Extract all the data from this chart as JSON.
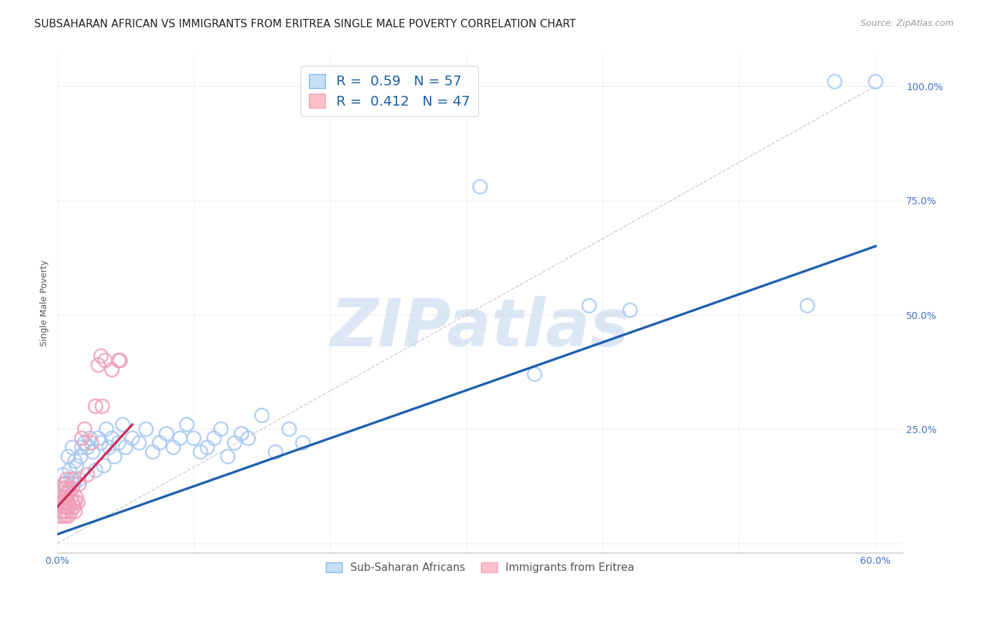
{
  "title": "SUBSAHARAN AFRICAN VS IMMIGRANTS FROM ERITREA SINGLE MALE POVERTY CORRELATION CHART",
  "source": "Source: ZipAtlas.com",
  "xlabel": "",
  "ylabel": "Single Male Poverty",
  "xlim": [
    0.0,
    0.62
  ],
  "ylim": [
    -0.02,
    1.07
  ],
  "xticks": [
    0.0,
    0.1,
    0.2,
    0.3,
    0.4,
    0.5,
    0.6
  ],
  "yticks": [
    0.0,
    0.25,
    0.5,
    0.75,
    1.0
  ],
  "yticklabels": [
    "",
    "25.0%",
    "50.0%",
    "75.0%",
    "100.0%"
  ],
  "blue_R": 0.59,
  "blue_N": 57,
  "pink_R": 0.412,
  "pink_N": 47,
  "blue_color": "#a8c8f0",
  "pink_color": "#f0a0b8",
  "blue_line_color": "#2060b0",
  "pink_line_color": "#cc3060",
  "blue_line": [
    [
      0.0,
      0.02
    ],
    [
      0.6,
      0.65
    ]
  ],
  "pink_line": [
    [
      0.0,
      0.08
    ],
    [
      0.055,
      0.26
    ]
  ],
  "diag_line": [
    [
      0.0,
      0.0
    ],
    [
      0.6,
      1.0
    ]
  ],
  "blue_scatter": [
    [
      0.004,
      0.15
    ],
    [
      0.006,
      0.13
    ],
    [
      0.007,
      0.11
    ],
    [
      0.008,
      0.19
    ],
    [
      0.009,
      0.16
    ],
    [
      0.01,
      0.14
    ],
    [
      0.011,
      0.21
    ],
    [
      0.012,
      0.13
    ],
    [
      0.013,
      0.18
    ],
    [
      0.014,
      0.17
    ],
    [
      0.016,
      0.14
    ],
    [
      0.017,
      0.19
    ],
    [
      0.018,
      0.21
    ],
    [
      0.02,
      0.22
    ],
    [
      0.022,
      0.21
    ],
    [
      0.024,
      0.23
    ],
    [
      0.026,
      0.2
    ],
    [
      0.028,
      0.16
    ],
    [
      0.03,
      0.23
    ],
    [
      0.032,
      0.22
    ],
    [
      0.034,
      0.17
    ],
    [
      0.036,
      0.25
    ],
    [
      0.038,
      0.21
    ],
    [
      0.04,
      0.23
    ],
    [
      0.042,
      0.19
    ],
    [
      0.045,
      0.22
    ],
    [
      0.048,
      0.26
    ],
    [
      0.05,
      0.21
    ],
    [
      0.055,
      0.23
    ],
    [
      0.06,
      0.22
    ],
    [
      0.065,
      0.25
    ],
    [
      0.07,
      0.2
    ],
    [
      0.075,
      0.22
    ],
    [
      0.08,
      0.24
    ],
    [
      0.085,
      0.21
    ],
    [
      0.09,
      0.23
    ],
    [
      0.095,
      0.26
    ],
    [
      0.1,
      0.23
    ],
    [
      0.105,
      0.2
    ],
    [
      0.11,
      0.21
    ],
    [
      0.115,
      0.23
    ],
    [
      0.12,
      0.25
    ],
    [
      0.125,
      0.19
    ],
    [
      0.13,
      0.22
    ],
    [
      0.135,
      0.24
    ],
    [
      0.14,
      0.23
    ],
    [
      0.15,
      0.28
    ],
    [
      0.16,
      0.2
    ],
    [
      0.17,
      0.25
    ],
    [
      0.18,
      0.22
    ],
    [
      0.31,
      0.78
    ],
    [
      0.35,
      0.37
    ],
    [
      0.39,
      0.52
    ],
    [
      0.42,
      0.51
    ],
    [
      0.55,
      0.52
    ],
    [
      0.57,
      1.01
    ],
    [
      0.6,
      1.01
    ]
  ],
  "pink_scatter": [
    [
      0.002,
      0.06
    ],
    [
      0.002,
      0.08
    ],
    [
      0.003,
      0.1
    ],
    [
      0.003,
      0.12
    ],
    [
      0.003,
      0.07
    ],
    [
      0.004,
      0.09
    ],
    [
      0.004,
      0.11
    ],
    [
      0.004,
      0.06
    ],
    [
      0.005,
      0.1
    ],
    [
      0.005,
      0.08
    ],
    [
      0.005,
      0.13
    ],
    [
      0.005,
      0.07
    ],
    [
      0.006,
      0.12
    ],
    [
      0.006,
      0.09
    ],
    [
      0.006,
      0.06
    ],
    [
      0.007,
      0.1
    ],
    [
      0.007,
      0.08
    ],
    [
      0.007,
      0.14
    ],
    [
      0.007,
      0.07
    ],
    [
      0.008,
      0.11
    ],
    [
      0.008,
      0.09
    ],
    [
      0.008,
      0.06
    ],
    [
      0.009,
      0.12
    ],
    [
      0.009,
      0.08
    ],
    [
      0.01,
      0.1
    ],
    [
      0.01,
      0.07
    ],
    [
      0.011,
      0.09
    ],
    [
      0.011,
      0.12
    ],
    [
      0.012,
      0.08
    ],
    [
      0.012,
      0.14
    ],
    [
      0.013,
      0.09
    ],
    [
      0.013,
      0.07
    ],
    [
      0.014,
      0.1
    ],
    [
      0.015,
      0.09
    ],
    [
      0.016,
      0.13
    ],
    [
      0.018,
      0.23
    ],
    [
      0.02,
      0.25
    ],
    [
      0.022,
      0.15
    ],
    [
      0.025,
      0.22
    ],
    [
      0.028,
      0.3
    ],
    [
      0.03,
      0.39
    ],
    [
      0.032,
      0.41
    ],
    [
      0.033,
      0.3
    ],
    [
      0.035,
      0.4
    ],
    [
      0.04,
      0.38
    ],
    [
      0.045,
      0.4
    ],
    [
      0.046,
      0.4
    ]
  ],
  "watermark": "ZIPatlas",
  "watermark_color": "#c5d8f0",
  "background_color": "#ffffff",
  "grid_color": "#e8e8e8",
  "title_fontsize": 11,
  "axis_label_fontsize": 9,
  "tick_fontsize": 10,
  "legend_fontsize": 14,
  "tick_color": "#4472c4"
}
